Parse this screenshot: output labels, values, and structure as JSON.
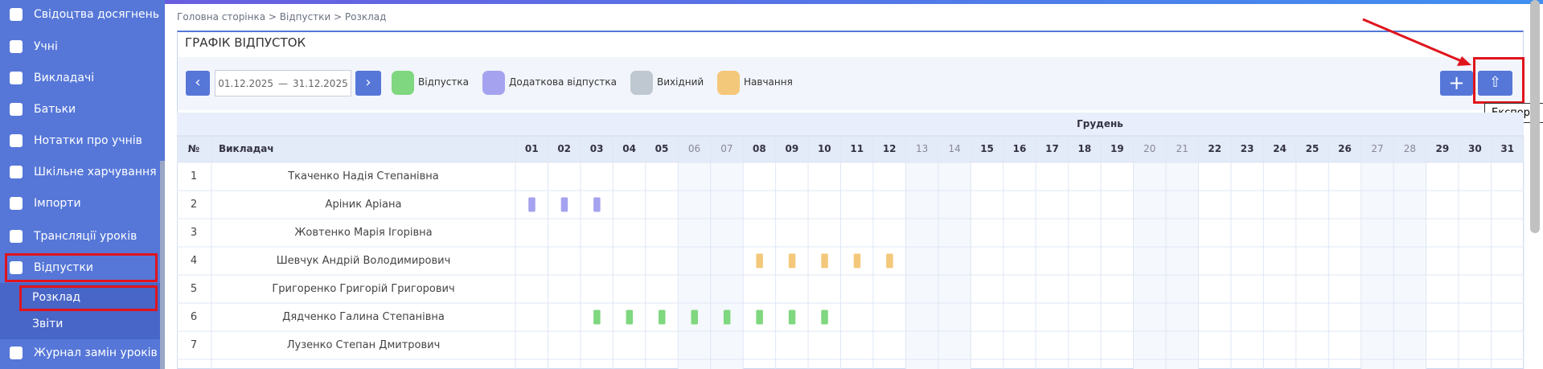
{
  "sidebar": {
    "items": [
      "Свідоцтва досягнень",
      "Учні",
      "Викладачі",
      "Батьки",
      "Нотатки про учнів",
      "Шкільне харчування",
      "Імпорти",
      "Трансляції уроків",
      "Відпустки"
    ],
    "sub_items": [
      "Розклад",
      "Звіти"
    ],
    "after_items": [
      "Журнал замін уроків"
    ]
  },
  "breadcrumb": "Головна сторінка > Відпустки > Розклад",
  "panel": {
    "title": "ГРАФІК ВІДПУСТОК",
    "date_from": "01.12.2025",
    "date_separator": "—",
    "date_to": "31.12.2025",
    "tooltip": "Експорт",
    "legend": [
      {
        "label": "Відпустка",
        "color": "#7fd77f"
      },
      {
        "label": "Додаткова відпустка",
        "color": "#a5a3ef"
      },
      {
        "label": "Вихідний",
        "color": "#bfc8d0"
      },
      {
        "label": "Навчання",
        "color": "#f4c87a"
      }
    ]
  },
  "table": {
    "month": "Грудень",
    "headers": [
      "№",
      "Викладач"
    ],
    "days": [
      "01",
      "02",
      "03",
      "04",
      "05",
      "06",
      "07",
      "08",
      "09",
      "10",
      "11",
      "12",
      "13",
      "14",
      "15",
      "16",
      "17",
      "18",
      "19",
      "20",
      "21",
      "22",
      "23",
      "24",
      "25",
      "26",
      "27",
      "28",
      "29",
      "30",
      "31"
    ],
    "weekend_days": [
      6,
      7,
      13,
      14,
      20,
      21,
      27,
      28
    ],
    "rows": [
      {
        "number": "1",
        "name": "Ткаченко Надія Степанівна",
        "marks": []
      },
      {
        "number": "2",
        "name": "Аріник Аріана",
        "marks": [
          {
            "legend": 1,
            "days": [
              1,
              2,
              3
            ]
          }
        ]
      },
      {
        "number": "3",
        "name": "Жовтенко Марія Ігорівна",
        "marks": []
      },
      {
        "number": "4",
        "name": "Шевчук Андрій Володимирович",
        "marks": [
          {
            "legend": 3,
            "days": [
              8,
              9,
              10,
              11,
              12
            ]
          }
        ]
      },
      {
        "number": "5",
        "name": "Григоренко Григорій Григорович",
        "marks": []
      },
      {
        "number": "6",
        "name": "Дядченко Галина Степанівна",
        "marks": [
          {
            "legend": 0,
            "days": [
              3,
              4,
              5,
              6,
              7,
              8,
              9,
              10
            ]
          }
        ]
      },
      {
        "number": "7",
        "name": "Лузенко Степан Дмитрович",
        "marks": []
      }
    ]
  }
}
